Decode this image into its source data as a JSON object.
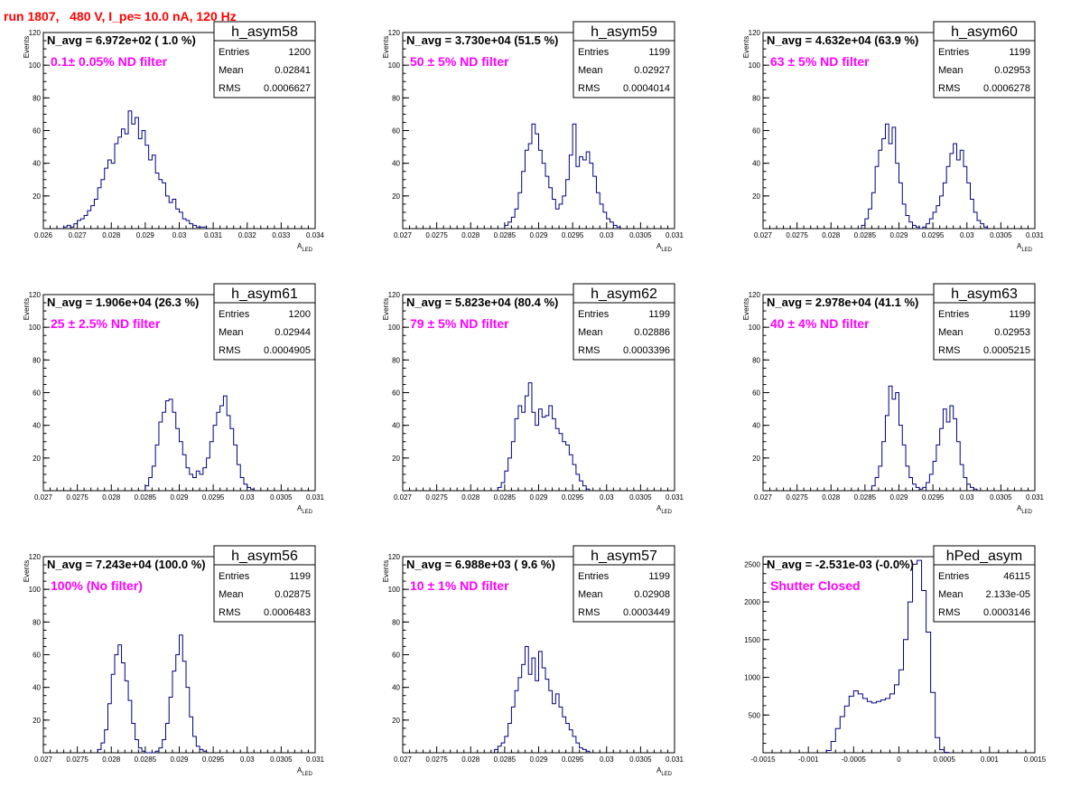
{
  "run_title": "run 1807,   480 V, I_pe≈ 10.0 nA, 120 Hz",
  "colors": {
    "title": "#ff0000",
    "note": "#ff00ff",
    "hist_line": "#000080",
    "frame": "#000000"
  },
  "chart_data": [
    {
      "type": "bar",
      "name": "h_asym58",
      "ylabel": "Events",
      "xlabel": "A_LED",
      "xlim": [
        0.026,
        0.034
      ],
      "ylim": [
        0,
        120
      ],
      "xticks": [
        "0.026",
        "0.027",
        "0.028",
        "0.029",
        "0.03",
        "0.031",
        "0.032",
        "0.033",
        "0.034"
      ],
      "yticks": [
        "20",
        "40",
        "60",
        "80",
        "100",
        "120"
      ],
      "n_avg": "N_avg = 6.972e+02 ( 1.0 %)",
      "note": "0.1± 0.05% ND filter",
      "stats": {
        "Entries": "1200",
        "Mean": "0.02841",
        "RMS": "0.0006627"
      },
      "bin_start": 0.0266,
      "bin_width": 0.0001,
      "values": [
        1,
        2,
        1,
        3,
        5,
        6,
        8,
        11,
        14,
        18,
        25,
        30,
        37,
        42,
        40,
        52,
        56,
        61,
        58,
        72,
        64,
        68,
        55,
        60,
        51,
        42,
        45,
        34,
        30,
        28,
        20,
        16,
        18,
        12,
        10,
        6,
        5,
        3,
        2,
        1,
        1,
        1
      ]
    },
    {
      "type": "bar",
      "name": "h_asym59",
      "ylabel": "Events",
      "xlabel": "A_LED",
      "xlim": [
        0.027,
        0.031
      ],
      "ylim": [
        0,
        120
      ],
      "xticks": [
        "0.027",
        "0.0275",
        "0.028",
        "0.0285",
        "0.029",
        "0.0295",
        "0.03",
        "0.0305",
        "0.031"
      ],
      "yticks": [
        "20",
        "40",
        "60",
        "80",
        "100",
        "120"
      ],
      "n_avg": "N_avg = 3.730e+04 (51.5 %)",
      "note": "50 ± 5% ND filter",
      "stats": {
        "Entries": "1199",
        "Mean": "0.02927",
        "RMS": "0.0004014"
      },
      "bin_start": 0.0285,
      "bin_width": 5e-05,
      "values": [
        2,
        4,
        7,
        12,
        22,
        35,
        48,
        52,
        64,
        58,
        48,
        40,
        32,
        25,
        18,
        12,
        15,
        20,
        30,
        45,
        64,
        38,
        44,
        42,
        47,
        40,
        32,
        22,
        15,
        10,
        6,
        4,
        2,
        1
      ]
    },
    {
      "type": "bar",
      "name": "h_asym60",
      "ylabel": "Events",
      "xlabel": "A_LED",
      "xlim": [
        0.027,
        0.031
      ],
      "ylim": [
        0,
        120
      ],
      "xticks": [
        "0.027",
        "0.0275",
        "0.028",
        "0.0285",
        "0.029",
        "0.0295",
        "0.03",
        "0.0305",
        "0.031"
      ],
      "yticks": [
        "20",
        "40",
        "60",
        "80",
        "100",
        "120"
      ],
      "n_avg": "N_avg = 4.632e+04 (63.9 %)",
      "note": "63 ± 5% ND filter",
      "stats": {
        "Entries": "1199",
        "Mean": "0.02953",
        "RMS": "0.0006278"
      },
      "bin_start": 0.02845,
      "bin_width": 5e-05,
      "values": [
        2,
        6,
        12,
        22,
        38,
        48,
        55,
        64,
        52,
        62,
        40,
        28,
        15,
        8,
        4,
        2,
        1,
        0,
        1,
        3,
        6,
        10,
        14,
        20,
        28,
        38,
        46,
        52,
        42,
        48,
        38,
        28,
        18,
        10,
        5,
        3,
        1
      ]
    },
    {
      "type": "bar",
      "name": "h_asym61",
      "ylabel": "Events",
      "xlabel": "A_LED",
      "xlim": [
        0.027,
        0.031
      ],
      "ylim": [
        0,
        120
      ],
      "xticks": [
        "0.027",
        "0.0275",
        "0.028",
        "0.0285",
        "0.029",
        "0.0295",
        "0.03",
        "0.0305",
        "0.031"
      ],
      "yticks": [
        "20",
        "40",
        "60",
        "80",
        "100",
        "120"
      ],
      "n_avg": "N_avg = 1.906e+04 (26.3 %)",
      "note": "25 ± 2.5% ND filter",
      "stats": {
        "Entries": "1200",
        "Mean": "0.02944",
        "RMS": "0.0004905"
      },
      "bin_start": 0.0285,
      "bin_width": 5e-05,
      "values": [
        3,
        8,
        15,
        28,
        42,
        48,
        55,
        56,
        48,
        38,
        30,
        22,
        14,
        10,
        8,
        12,
        10,
        14,
        20,
        30,
        40,
        48,
        52,
        58,
        46,
        38,
        28,
        16,
        8,
        4,
        2,
        1
      ]
    },
    {
      "type": "bar",
      "name": "h_asym62",
      "ylabel": "Events",
      "xlabel": "A_LED",
      "xlim": [
        0.027,
        0.031
      ],
      "ylim": [
        0,
        120
      ],
      "xticks": [
        "0.027",
        "0.0275",
        "0.028",
        "0.0285",
        "0.029",
        "0.0295",
        "0.03",
        "0.0305",
        "0.031"
      ],
      "yticks": [
        "20",
        "40",
        "60",
        "80",
        "100",
        "120"
      ],
      "n_avg": "N_avg = 5.823e+04 (80.4 %)",
      "note": "79 ± 5% ND filter",
      "stats": {
        "Entries": "1199",
        "Mean": "0.02886",
        "RMS": "0.0003396"
      },
      "bin_start": 0.0284,
      "bin_width": 5e-05,
      "values": [
        2,
        5,
        12,
        20,
        30,
        44,
        52,
        48,
        58,
        66,
        48,
        40,
        50,
        45,
        46,
        52,
        44,
        38,
        35,
        30,
        28,
        22,
        16,
        10,
        6,
        3,
        1
      ]
    },
    {
      "type": "bar",
      "name": "h_asym63",
      "ylabel": "Events",
      "xlabel": "A_LED",
      "xlim": [
        0.027,
        0.031
      ],
      "ylim": [
        0,
        120
      ],
      "xticks": [
        "0.027",
        "0.0275",
        "0.028",
        "0.0285",
        "0.029",
        "0.0295",
        "0.03",
        "0.0305",
        "0.031"
      ],
      "yticks": [
        "20",
        "40",
        "60",
        "80",
        "100",
        "120"
      ],
      "n_avg": "N_avg = 2.978e+04 (41.1 %)",
      "note": "40 ± 4% ND filter",
      "stats": {
        "Entries": "1199",
        "Mean": "0.02953",
        "RMS": "0.0005215"
      },
      "bin_start": 0.0286,
      "bin_width": 5e-05,
      "values": [
        3,
        8,
        15,
        30,
        46,
        64,
        56,
        60,
        40,
        28,
        15,
        8,
        4,
        2,
        1,
        2,
        5,
        10,
        18,
        28,
        38,
        50,
        42,
        52,
        44,
        30,
        16,
        8,
        4,
        2,
        1
      ]
    },
    {
      "type": "bar",
      "name": "h_asym56",
      "ylabel": "Events",
      "xlabel": "A_LED",
      "xlim": [
        0.027,
        0.031
      ],
      "ylim": [
        0,
        120
      ],
      "xticks": [
        "0.027",
        "0.0275",
        "0.028",
        "0.0285",
        "0.029",
        "0.0295",
        "0.03",
        "0.0305",
        "0.031"
      ],
      "yticks": [
        "20",
        "40",
        "60",
        "80",
        "100",
        "120"
      ],
      "n_avg": "N_avg = 7.243e+04 (100.0 %)",
      "note": "100% (No filter)",
      "stats": {
        "Entries": "1199",
        "Mean": "0.02875",
        "RMS": "0.0006483"
      },
      "bin_start": 0.0278,
      "bin_width": 5e-05,
      "values": [
        2,
        6,
        14,
        30,
        48,
        60,
        66,
        55,
        44,
        32,
        18,
        8,
        3,
        1,
        0,
        0,
        0,
        1,
        3,
        8,
        18,
        34,
        50,
        60,
        72,
        56,
        40,
        22,
        10,
        4,
        2,
        1
      ]
    },
    {
      "type": "bar",
      "name": "h_asym57",
      "ylabel": "Events",
      "xlabel": "A_LED",
      "xlim": [
        0.027,
        0.031
      ],
      "ylim": [
        0,
        120
      ],
      "xticks": [
        "0.027",
        "0.0275",
        "0.028",
        "0.0285",
        "0.029",
        "0.0295",
        "0.03",
        "0.0305",
        "0.031"
      ],
      "yticks": [
        "20",
        "40",
        "60",
        "80",
        "100",
        "120"
      ],
      "n_avg": "N_avg = 6.988e+03 ( 9.6 %)",
      "note": "10 ± 1% ND filter",
      "stats": {
        "Entries": "1199",
        "Mean": "0.02908",
        "RMS": "0.0003449"
      },
      "bin_start": 0.02835,
      "bin_width": 5e-05,
      "values": [
        2,
        4,
        6,
        10,
        18,
        28,
        38,
        46,
        54,
        65,
        48,
        58,
        44,
        62,
        52,
        45,
        38,
        30,
        36,
        28,
        22,
        18,
        14,
        10,
        6,
        3,
        2,
        1
      ]
    },
    {
      "type": "bar",
      "name": "hPed_asym",
      "ylabel": "",
      "xlabel": "",
      "xlim": [
        -0.0015,
        0.0015
      ],
      "ylim": [
        0,
        2600
      ],
      "xticks": [
        "-0.0015",
        "-0.001",
        "-0.0005",
        "0",
        "0.0005",
        "0.001",
        "0.0015"
      ],
      "yticks": [
        "500",
        "1000",
        "1500",
        "2000",
        "2500"
      ],
      "n_avg": "N_avg = -2.531e-03 (-0.0%)",
      "note": "Shutter Closed",
      "stats": {
        "Entries": "46115",
        "Mean": "2.133e-05",
        "RMS": "0.0003146"
      },
      "bin_start": -0.0008,
      "bin_width": 5e-05,
      "values": [
        30,
        150,
        320,
        480,
        620,
        750,
        820,
        780,
        720,
        680,
        660,
        680,
        700,
        720,
        780,
        900,
        1100,
        1500,
        2000,
        2500,
        2550,
        2150,
        1600,
        800,
        200,
        40,
        5
      ]
    }
  ]
}
